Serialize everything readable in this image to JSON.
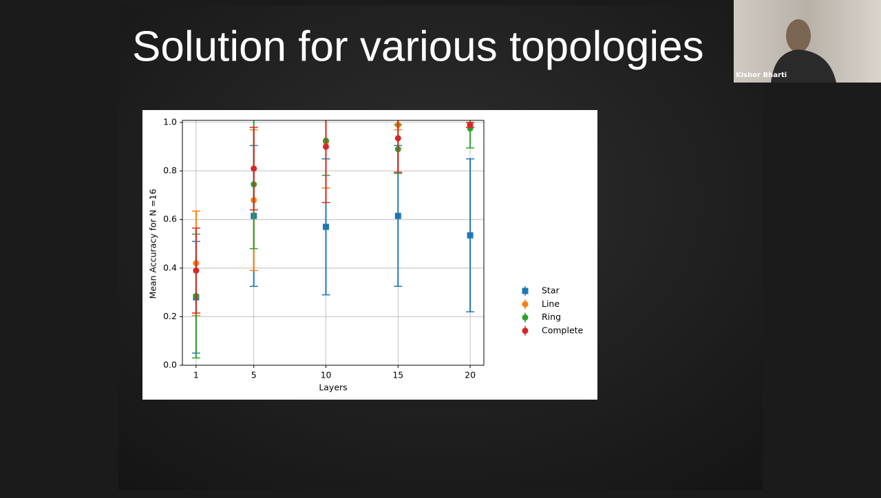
{
  "slide_title": "Solution for various topologies",
  "participant": "Kishor Bharti",
  "chart_data": {
    "type": "errorbar",
    "x_label": "Layers",
    "y_label": "Mean Accuracy for N =16",
    "x": [
      1,
      5,
      10,
      15,
      20
    ],
    "xlim": [
      0.05,
      20.95
    ],
    "xticks": [
      1,
      5,
      10,
      15,
      20
    ],
    "ylim": [
      0,
      1.0
    ],
    "yticks": [
      {
        "value": 0,
        "label": "0.0"
      },
      0.2,
      0.4,
      0.6,
      0.8,
      {
        "value": 1,
        "label": "1.0"
      }
    ],
    "grid": true,
    "legend": "outside right",
    "series": [
      {
        "name": "Star",
        "color": "#1f77b4",
        "marker": "square",
        "values": [
          0.28,
          0.615,
          0.57,
          0.615,
          0.535
        ],
        "errors": [
          0.23,
          0.29,
          0.28,
          0.29,
          0.315
        ]
      },
      {
        "name": "Line",
        "color": "#ff7f0e",
        "marker": "circle",
        "values": [
          0.42,
          0.68,
          0.92,
          0.99,
          0.99
        ],
        "errors": [
          0.215,
          0.29,
          0.19,
          0.02,
          0.01
        ]
      },
      {
        "name": "Ring",
        "color": "#2ca02c",
        "marker": "circle",
        "values": [
          0.285,
          0.745,
          0.925,
          0.89,
          0.975
        ],
        "errors": [
          0.255,
          0.265,
          0.143,
          0.1,
          0.08
        ]
      },
      {
        "name": "Complete",
        "color": "#d62728",
        "marker": "circle",
        "values": [
          0.39,
          0.81,
          0.9,
          0.935,
          0.99
        ],
        "errors": [
          0.175,
          0.17,
          0.23,
          0.14,
          0.01
        ]
      }
    ]
  }
}
